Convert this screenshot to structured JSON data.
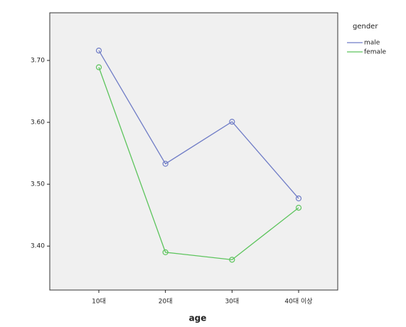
{
  "chart_data": {
    "type": "line",
    "x_label": "age",
    "legend_title": "gender",
    "categories": [
      "10대",
      "20대",
      "30대",
      "40대 이상"
    ],
    "series": [
      {
        "name": "male",
        "color": "#6f7cc6",
        "values": [
          3.716,
          3.533,
          3.601,
          3.477
        ]
      },
      {
        "name": "female",
        "color": "#5cc45c",
        "values": [
          3.689,
          3.39,
          3.378,
          3.462
        ]
      }
    ],
    "ylim": [
      3.329,
      3.777
    ],
    "yticks": [
      {
        "value": 3.4,
        "label": "3.40"
      },
      {
        "value": 3.5,
        "label": "3.50"
      },
      {
        "value": 3.6,
        "label": "3.60"
      },
      {
        "value": 3.7,
        "label": "3.70"
      }
    ],
    "legend_position": "right"
  }
}
